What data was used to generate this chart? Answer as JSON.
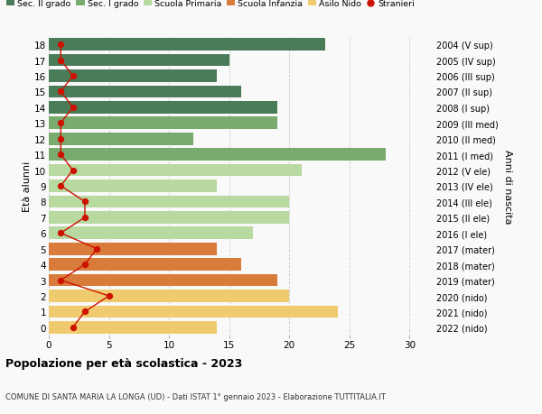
{
  "ages": [
    18,
    17,
    16,
    15,
    14,
    13,
    12,
    11,
    10,
    9,
    8,
    7,
    6,
    5,
    4,
    3,
    2,
    1,
    0
  ],
  "bar_values": [
    23,
    15,
    14,
    16,
    19,
    19,
    12,
    28,
    21,
    14,
    20,
    20,
    17,
    14,
    16,
    19,
    20,
    24,
    14
  ],
  "bar_colors": [
    "#4a7c59",
    "#4a7c59",
    "#4a7c59",
    "#4a7c59",
    "#4a7c59",
    "#7aab6e",
    "#7aab6e",
    "#7aab6e",
    "#b8d9a0",
    "#b8d9a0",
    "#b8d9a0",
    "#b8d9a0",
    "#b8d9a0",
    "#d97b3a",
    "#d97b3a",
    "#d97b3a",
    "#f0ca6e",
    "#f0ca6e",
    "#f0ca6e"
  ],
  "stranieri": [
    1,
    1,
    2,
    1,
    2,
    1,
    1,
    1,
    2,
    1,
    3,
    3,
    1,
    4,
    3,
    1,
    5,
    3,
    2
  ],
  "right_labels": [
    "2004 (V sup)",
    "2005 (IV sup)",
    "2006 (III sup)",
    "2007 (II sup)",
    "2008 (I sup)",
    "2009 (III med)",
    "2010 (II med)",
    "2011 (I med)",
    "2012 (V ele)",
    "2013 (IV ele)",
    "2014 (III ele)",
    "2015 (II ele)",
    "2016 (I ele)",
    "2017 (mater)",
    "2018 (mater)",
    "2019 (mater)",
    "2020 (nido)",
    "2021 (nido)",
    "2022 (nido)"
  ],
  "xlim": [
    0,
    32
  ],
  "ylabel_left": "Età alunni",
  "ylabel_right": "Anni di nascita",
  "title": "Popolazione per età scolastica - 2023",
  "subtitle": "COMUNE DI SANTA MARIA LA LONGA (UD) - Dati ISTAT 1° gennaio 2023 - Elaborazione TUTTITALIA.IT",
  "legend_labels": [
    "Sec. II grado",
    "Sec. I grado",
    "Scuola Primaria",
    "Scuola Infanzia",
    "Asilo Nido",
    "Stranieri"
  ],
  "legend_colors": [
    "#4a7c59",
    "#7aab6e",
    "#b8d9a0",
    "#d97b3a",
    "#f0ca6e",
    "#cc1100"
  ],
  "bg_color": "#f9f9f9",
  "bar_height": 0.78,
  "grid_color": "#cccccc",
  "stranieri_color": "#cc1100"
}
